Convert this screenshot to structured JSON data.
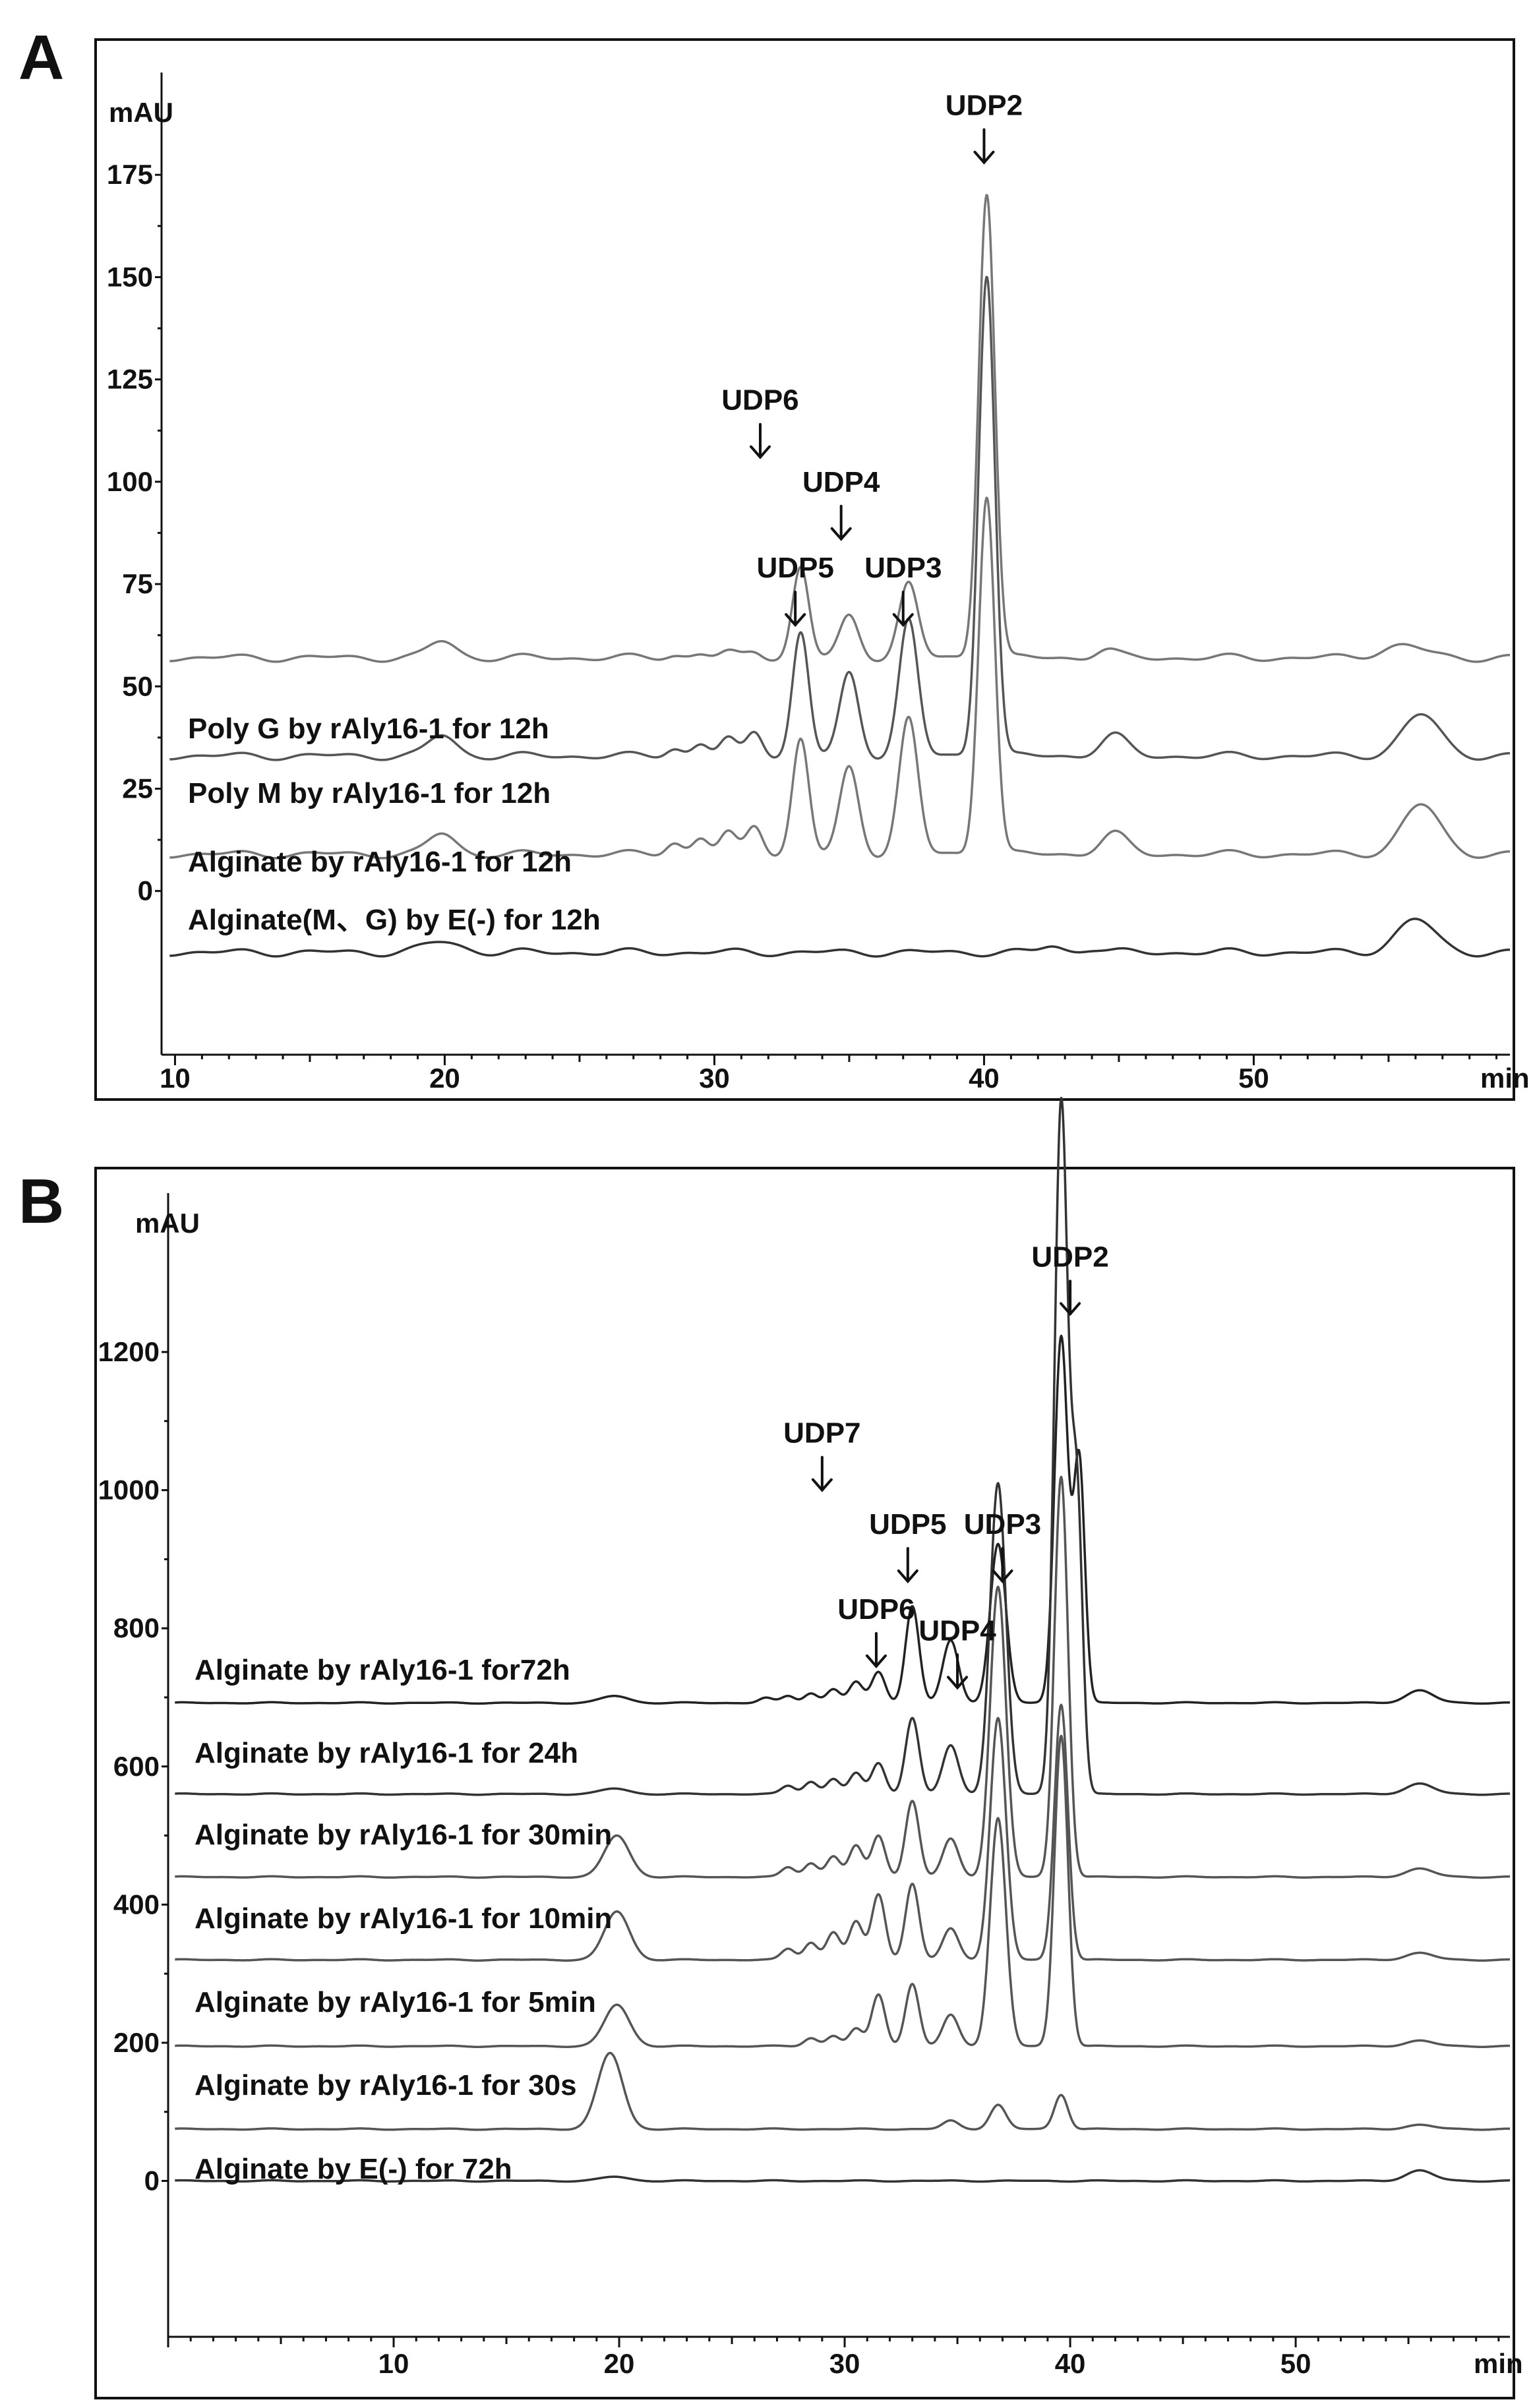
{
  "chart_data": [
    {
      "panel": "A",
      "type": "line",
      "ylabel": "mAU",
      "xlabel": "min",
      "x_ticks": [
        10,
        20,
        30,
        40,
        50
      ],
      "y_ticks": [
        0,
        25,
        50,
        75,
        100,
        125,
        150,
        175
      ],
      "xlim": [
        9.5,
        59.5
      ],
      "ylim": [
        -40,
        200
      ],
      "grid": false,
      "series": [
        {
          "name": "Poly G by  rAly16-1 for 12h",
          "offset": 57,
          "color": "#777777",
          "peaks": [
            [
              19.9,
              4,
              0.5
            ],
            [
              28.5,
              0.8,
              0.3
            ],
            [
              29.5,
              1,
              0.3
            ],
            [
              30.5,
              1.2,
              0.3
            ],
            [
              31.5,
              1.5,
              0.3
            ],
            [
              33.2,
              22,
              0.3
            ],
            [
              35.0,
              10,
              0.35
            ],
            [
              37.2,
              18,
              0.35
            ],
            [
              40.1,
              114,
              0.3
            ],
            [
              44.5,
              2,
              0.4
            ],
            [
              55.5,
              3,
              0.8
            ]
          ]
        },
        {
          "name": "Poly M by  rAly16-1  for 12h",
          "offset": 33,
          "color": "#555555",
          "peaks": [
            [
              19.9,
              5,
              0.5
            ],
            [
              28.5,
              2,
              0.3
            ],
            [
              29.5,
              3,
              0.3
            ],
            [
              30.5,
              4,
              0.3
            ],
            [
              31.5,
              6,
              0.3
            ],
            [
              33.2,
              30,
              0.3
            ],
            [
              35.0,
              20,
              0.35
            ],
            [
              37.2,
              33,
              0.35
            ],
            [
              40.1,
              118,
              0.3
            ],
            [
              44.8,
              5,
              0.5
            ],
            [
              56.2,
              10,
              0.7
            ]
          ]
        },
        {
          "name": "Alginate by  rAly16-1 for 12h",
          "offset": 9,
          "color": "#777777",
          "peaks": [
            [
              19.9,
              5,
              0.5
            ],
            [
              28.5,
              3,
              0.3
            ],
            [
              29.5,
              4,
              0.3
            ],
            [
              30.5,
              5,
              0.3
            ],
            [
              31.5,
              7,
              0.3
            ],
            [
              33.2,
              28,
              0.3
            ],
            [
              35.0,
              21,
              0.35
            ],
            [
              37.2,
              33,
              0.35
            ],
            [
              40.1,
              88,
              0.3
            ],
            [
              44.8,
              5,
              0.5
            ],
            [
              56.2,
              12,
              0.7
            ]
          ]
        },
        {
          "name": "Alginate(M、G) by E(-)  for 12h",
          "offset": -15,
          "color": "#333333",
          "peaks": [
            [
              19.9,
              2.5,
              0.7
            ],
            [
              42.5,
              1.5,
              0.4
            ],
            [
              44.0,
              1,
              0.4
            ],
            [
              56.0,
              8,
              0.7
            ]
          ]
        }
      ],
      "annotations": [
        {
          "text": "UDP2",
          "x": 40.0,
          "y_arrow": 178
        },
        {
          "text": "UDP6",
          "x": 31.7,
          "y_arrow": 106
        },
        {
          "text": "UDP4",
          "x": 34.7,
          "y_arrow": 86
        },
        {
          "text": "UDP5",
          "x": 33.0,
          "y_arrow": 65
        },
        {
          "text": "UDP3",
          "x": 37.0,
          "y_arrow": 65
        }
      ]
    },
    {
      "panel": "B",
      "type": "line",
      "ylabel": "mAU",
      "xlabel": "min",
      "x_ticks": [
        10,
        20,
        30,
        40,
        50
      ],
      "y_ticks": [
        0,
        200,
        400,
        600,
        800,
        1000,
        1200
      ],
      "xlim": [
        0,
        59.5
      ],
      "ylim": [
        -240,
        1430
      ],
      "grid": false,
      "series": [
        {
          "name": "Alginate by rAly16-1 for72h",
          "offset": 692,
          "color": "#222222",
          "peaks": [
            [
              19.8,
              10,
              0.6
            ],
            [
              26.5,
              7,
              0.3
            ],
            [
              27.5,
              10,
              0.3
            ],
            [
              28.5,
              14,
              0.3
            ],
            [
              29.5,
              20,
              0.3
            ],
            [
              30.5,
              30,
              0.3
            ],
            [
              31.5,
              45,
              0.3
            ],
            [
              33.0,
              140,
              0.3
            ],
            [
              34.7,
              90,
              0.35
            ],
            [
              36.8,
              230,
              0.35
            ],
            [
              39.6,
              530,
              0.3
            ],
            [
              40.4,
              350,
              0.25
            ],
            [
              55.5,
              18,
              0.6
            ]
          ]
        },
        {
          "name": "Alginate by rAly16-1 for 24h",
          "offset": 560,
          "color": "#333333",
          "peaks": [
            [
              19.8,
              8,
              0.6
            ],
            [
              27.5,
              12,
              0.3
            ],
            [
              28.5,
              18,
              0.3
            ],
            [
              29.5,
              22,
              0.3
            ],
            [
              30.5,
              30,
              0.3
            ],
            [
              31.5,
              45,
              0.3
            ],
            [
              33.0,
              110,
              0.3
            ],
            [
              34.7,
              70,
              0.35
            ],
            [
              36.8,
              450,
              0.35
            ],
            [
              39.6,
              1000,
              0.3
            ],
            [
              40.3,
              420,
              0.25
            ],
            [
              55.5,
              15,
              0.6
            ]
          ]
        },
        {
          "name": "Alginate by rAly16-1 for 30min",
          "offset": 440,
          "color": "#555555",
          "peaks": [
            [
              19.9,
              60,
              0.55
            ],
            [
              27.5,
              14,
              0.3
            ],
            [
              28.5,
              20,
              0.3
            ],
            [
              29.5,
              30,
              0.3
            ],
            [
              30.5,
              45,
              0.3
            ],
            [
              31.5,
              60,
              0.3
            ],
            [
              33.0,
              110,
              0.3
            ],
            [
              34.7,
              55,
              0.35
            ],
            [
              36.8,
              420,
              0.35
            ],
            [
              39.6,
              580,
              0.3
            ],
            [
              55.5,
              12,
              0.6
            ]
          ]
        },
        {
          "name": "Alginate by rAly16-1 for 10min",
          "offset": 320,
          "color": "#555555",
          "peaks": [
            [
              19.9,
              70,
              0.55
            ],
            [
              27.5,
              16,
              0.3
            ],
            [
              28.5,
              25,
              0.3
            ],
            [
              29.5,
              40,
              0.3
            ],
            [
              30.5,
              55,
              0.3
            ],
            [
              31.5,
              95,
              0.3
            ],
            [
              33.0,
              110,
              0.3
            ],
            [
              34.7,
              45,
              0.35
            ],
            [
              36.8,
              350,
              0.35
            ],
            [
              39.6,
              370,
              0.3
            ],
            [
              55.5,
              10,
              0.6
            ]
          ]
        },
        {
          "name": "Alginate by rAly16-1 for 5min",
          "offset": 195,
          "color": "#555555",
          "peaks": [
            [
              19.9,
              60,
              0.55
            ],
            [
              28.5,
              12,
              0.3
            ],
            [
              29.5,
              15,
              0.3
            ],
            [
              30.5,
              25,
              0.3
            ],
            [
              31.5,
              75,
              0.3
            ],
            [
              33.0,
              90,
              0.3
            ],
            [
              34.7,
              45,
              0.35
            ],
            [
              36.8,
              330,
              0.35
            ],
            [
              39.6,
              450,
              0.3
            ],
            [
              55.5,
              8,
              0.6
            ]
          ]
        },
        {
          "name": "Alginate by rAly16-1 for 30s",
          "offset": 75,
          "color": "#555555",
          "peaks": [
            [
              19.6,
              110,
              0.55
            ],
            [
              34.7,
              12,
              0.35
            ],
            [
              36.8,
              35,
              0.35
            ],
            [
              39.6,
              50,
              0.3
            ],
            [
              55.5,
              6,
              0.6
            ]
          ]
        },
        {
          "name": "Alginate by E(-) for 72h",
          "offset": 0,
          "color": "#333333",
          "peaks": [
            [
              19.8,
              6,
              0.6
            ],
            [
              55.5,
              15,
              0.6
            ]
          ]
        }
      ],
      "annotations": [
        {
          "text": "UDP2",
          "x": 40.0,
          "y_arrow": 1255
        },
        {
          "text": "UDP7",
          "x": 29.0,
          "y_arrow": 1000
        },
        {
          "text": "UDP5",
          "x": 32.8,
          "y_arrow": 868
        },
        {
          "text": "UDP3",
          "x": 37.0,
          "y_arrow": 868
        },
        {
          "text": "UDP6",
          "x": 31.4,
          "y_arrow": 745
        },
        {
          "text": "UDP4",
          "x": 35.0,
          "y_arrow": 714
        }
      ]
    }
  ]
}
